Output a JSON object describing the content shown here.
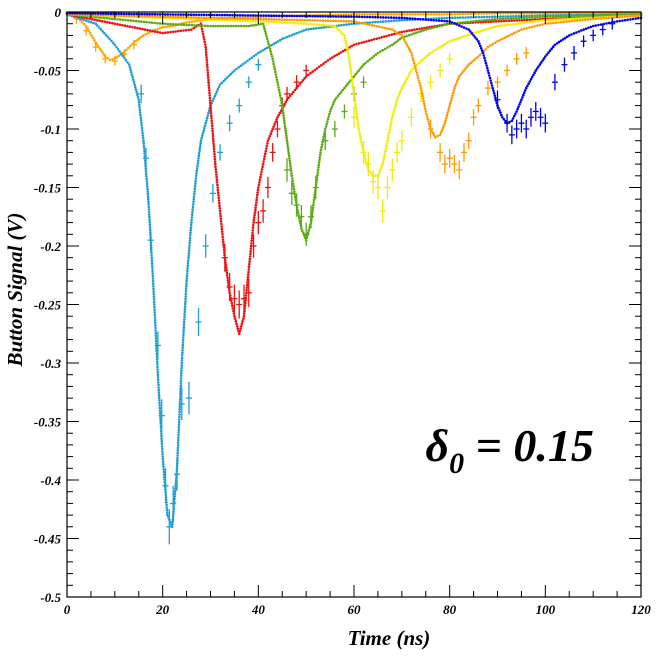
{
  "chart_data": {
    "type": "scatter",
    "title": "",
    "xlabel": "Time (ns)",
    "ylabel": "Button Signal (V)",
    "xlim": [
      0,
      120
    ],
    "ylim": [
      -0.5,
      0
    ],
    "x_ticks": [
      "0",
      "20",
      "40",
      "60",
      "80",
      "100",
      "120"
    ],
    "y_ticks": [
      "0",
      "-0.05",
      "-0.1",
      "-0.15",
      "-0.2",
      "-0.25",
      "-0.3",
      "-0.35",
      "-0.4",
      "-0.45",
      "-0.5"
    ],
    "grid": false,
    "annotation": {
      "symbol": "δ",
      "subscript": "0",
      "text": " = 0.15",
      "x": 99,
      "y": -0.365
    },
    "colors": {
      "orange": "#ffa500",
      "cyan": "#1f9fd0",
      "red": "#ee1111",
      "green": "#5aaa10",
      "yellow": "#eeee00",
      "amber": "#ff9900",
      "blue": "#0000ee"
    },
    "series": [
      {
        "color": "#ffa500",
        "marker": "dot",
        "x": [
          0,
          2,
          4,
          6,
          8,
          9,
          10,
          12,
          14,
          16,
          18,
          20,
          22,
          25,
          30,
          35,
          40,
          50,
          60,
          70,
          80,
          90,
          100,
          110,
          120
        ],
        "y": [
          -0.002,
          -0.004,
          -0.012,
          -0.026,
          -0.038,
          -0.041,
          -0.04,
          -0.034,
          -0.026,
          -0.02,
          -0.016,
          -0.013,
          -0.012,
          -0.009,
          -0.006,
          -0.005,
          -0.004,
          -0.003,
          -0.002,
          -0.002,
          -0.002,
          -0.001,
          -0.001,
          -0.001,
          -0.001
        ],
        "points_x": [
          2,
          4,
          6,
          8,
          10,
          12,
          14
        ],
        "points_y": [
          -0.006,
          -0.016,
          -0.03,
          -0.04,
          -0.042,
          -0.036,
          -0.028
        ],
        "points_err": [
          0.004,
          0.004,
          0.004,
          0.004,
          0.004,
          0.004,
          0.004
        ]
      },
      {
        "color": "#1f9fd0",
        "marker": "dot",
        "x": [
          0,
          6,
          10,
          13,
          15,
          16,
          17,
          18,
          19,
          20,
          21,
          22,
          23,
          24,
          25,
          26,
          27,
          28,
          30,
          32,
          35,
          40,
          45,
          50,
          60,
          70,
          80,
          90,
          100,
          120
        ],
        "y": [
          -0.002,
          -0.01,
          -0.028,
          -0.045,
          -0.075,
          -0.11,
          -0.16,
          -0.23,
          -0.31,
          -0.38,
          -0.43,
          -0.44,
          -0.39,
          -0.3,
          -0.23,
          -0.18,
          -0.14,
          -0.11,
          -0.08,
          -0.062,
          -0.05,
          -0.035,
          -0.023,
          -0.015,
          -0.01,
          -0.007,
          -0.005,
          -0.004,
          -0.003,
          -0.002
        ],
        "points_x": [
          15.5,
          16.5,
          17.5,
          19,
          19.8,
          20.6,
          21.4,
          22.2,
          23,
          24,
          25.5,
          27.5,
          29,
          30.5,
          32,
          34,
          36,
          38,
          40
        ],
        "points_y": [
          -0.07,
          -0.125,
          -0.195,
          -0.285,
          -0.345,
          -0.405,
          -0.44,
          -0.42,
          -0.395,
          -0.335,
          -0.33,
          -0.265,
          -0.2,
          -0.155,
          -0.12,
          -0.095,
          -0.08,
          -0.06,
          -0.045
        ],
        "points_err": [
          0.008,
          0.009,
          0.01,
          0.012,
          0.014,
          0.015,
          0.015,
          0.015,
          0.014,
          0.014,
          0.014,
          0.012,
          0.01,
          0.008,
          0.007,
          0.007,
          0.006,
          0.005,
          0.005
        ]
      },
      {
        "color": "#ee1111",
        "marker": "dot",
        "x": [
          0,
          10,
          20,
          26,
          28,
          29,
          30,
          31,
          32,
          33,
          34,
          35,
          36,
          37,
          38,
          39,
          40,
          42,
          44,
          46,
          48,
          50,
          55,
          60,
          70,
          80,
          100,
          120
        ],
        "y": [
          -0.002,
          -0.01,
          -0.018,
          -0.015,
          -0.01,
          -0.03,
          -0.08,
          -0.13,
          -0.17,
          -0.21,
          -0.24,
          -0.26,
          -0.275,
          -0.26,
          -0.22,
          -0.18,
          -0.15,
          -0.11,
          -0.09,
          -0.075,
          -0.065,
          -0.055,
          -0.04,
          -0.028,
          -0.017,
          -0.01,
          -0.006,
          -0.003
        ],
        "points_x": [
          33,
          34,
          35,
          36,
          37,
          38,
          39,
          40,
          41,
          42,
          43,
          44,
          45,
          46,
          48,
          50
        ],
        "points_y": [
          -0.21,
          -0.235,
          -0.245,
          -0.25,
          -0.245,
          -0.24,
          -0.2,
          -0.18,
          -0.17,
          -0.15,
          -0.12,
          -0.1,
          -0.08,
          -0.07,
          -0.06,
          -0.05
        ],
        "points_err": [
          0.012,
          0.012,
          0.012,
          0.012,
          0.012,
          0.012,
          0.01,
          0.01,
          0.01,
          0.009,
          0.008,
          0.007,
          0.007,
          0.006,
          0.006,
          0.005
        ]
      },
      {
        "color": "#5aaa10",
        "marker": "dot",
        "x": [
          0,
          10,
          20,
          30,
          38,
          41,
          43,
          44,
          45,
          46,
          47,
          48,
          49,
          50,
          51,
          52,
          53,
          54,
          55,
          56,
          58,
          60,
          62,
          65,
          68,
          70,
          75,
          80,
          90,
          100,
          120
        ],
        "y": [
          -0.002,
          -0.006,
          -0.01,
          -0.012,
          -0.012,
          -0.01,
          -0.04,
          -0.06,
          -0.08,
          -0.11,
          -0.14,
          -0.165,
          -0.185,
          -0.195,
          -0.18,
          -0.15,
          -0.12,
          -0.1,
          -0.085,
          -0.075,
          -0.065,
          -0.055,
          -0.045,
          -0.035,
          -0.028,
          -0.022,
          -0.015,
          -0.01,
          -0.006,
          -0.004,
          -0.002
        ],
        "points_x": [
          46,
          47,
          48,
          49,
          50,
          51,
          52,
          54,
          56,
          58,
          60,
          62
        ],
        "points_y": [
          -0.135,
          -0.155,
          -0.165,
          -0.175,
          -0.19,
          -0.175,
          -0.15,
          -0.11,
          -0.1,
          -0.085,
          -0.07,
          -0.06
        ],
        "points_err": [
          0.01,
          0.01,
          0.01,
          0.01,
          0.01,
          0.01,
          0.01,
          0.008,
          0.007,
          0.006,
          0.006,
          0.005
        ]
      },
      {
        "color": "#eeee00",
        "marker": "dot",
        "x": [
          0,
          20,
          40,
          50,
          56,
          58,
          59,
          60,
          61,
          62,
          63,
          64,
          65,
          66,
          67,
          68,
          69,
          70,
          72,
          74,
          76,
          78,
          80,
          85,
          90,
          100,
          120
        ],
        "y": [
          -0.002,
          -0.005,
          -0.008,
          -0.01,
          -0.012,
          -0.02,
          -0.04,
          -0.07,
          -0.1,
          -0.12,
          -0.135,
          -0.14,
          -0.14,
          -0.13,
          -0.11,
          -0.09,
          -0.075,
          -0.065,
          -0.05,
          -0.042,
          -0.035,
          -0.03,
          -0.025,
          -0.018,
          -0.012,
          -0.007,
          -0.003
        ],
        "points_x": [
          60,
          62,
          63,
          64,
          65,
          66,
          67,
          68,
          69,
          70,
          72,
          74,
          76,
          78,
          80
        ],
        "points_y": [
          -0.09,
          -0.12,
          -0.13,
          -0.145,
          -0.15,
          -0.17,
          -0.15,
          -0.135,
          -0.12,
          -0.11,
          -0.09,
          -0.07,
          -0.06,
          -0.05,
          -0.04
        ],
        "points_err": [
          0.009,
          0.01,
          0.01,
          0.01,
          0.01,
          0.01,
          0.01,
          0.01,
          0.009,
          0.009,
          0.008,
          0.007,
          0.006,
          0.006,
          0.005
        ]
      },
      {
        "color": "#ff9900",
        "marker": "dot",
        "x": [
          0,
          20,
          40,
          60,
          68,
          70,
          72,
          73,
          74,
          75,
          76,
          77,
          78,
          79,
          80,
          81,
          82,
          84,
          86,
          88,
          90,
          95,
          100,
          110,
          120
        ],
        "y": [
          -0.002,
          -0.004,
          -0.006,
          -0.008,
          -0.015,
          -0.02,
          -0.035,
          -0.05,
          -0.065,
          -0.085,
          -0.1,
          -0.107,
          -0.105,
          -0.095,
          -0.08,
          -0.065,
          -0.055,
          -0.045,
          -0.038,
          -0.03,
          -0.025,
          -0.015,
          -0.01,
          -0.006,
          -0.003
        ],
        "points_x": [
          76,
          78,
          79,
          80,
          81,
          82,
          83,
          84,
          85,
          86,
          88,
          90,
          92,
          94,
          96
        ],
        "points_y": [
          -0.1,
          -0.12,
          -0.13,
          -0.125,
          -0.13,
          -0.135,
          -0.12,
          -0.11,
          -0.09,
          -0.08,
          -0.065,
          -0.06,
          -0.05,
          -0.04,
          -0.035
        ],
        "points_err": [
          0.008,
          0.008,
          0.008,
          0.008,
          0.008,
          0.008,
          0.008,
          0.007,
          0.007,
          0.006,
          0.006,
          0.005,
          0.005,
          0.005,
          0.005
        ]
      },
      {
        "color": "#0000ee",
        "marker": "dot",
        "x": [
          0,
          20,
          40,
          60,
          70,
          80,
          84,
          86,
          87,
          88,
          89,
          90,
          91,
          92,
          93,
          94,
          95,
          96,
          98,
          100,
          102,
          105,
          108,
          110,
          115,
          120
        ],
        "y": [
          -0.001,
          -0.002,
          -0.003,
          -0.004,
          -0.005,
          -0.008,
          -0.015,
          -0.025,
          -0.035,
          -0.05,
          -0.065,
          -0.08,
          -0.09,
          -0.095,
          -0.093,
          -0.085,
          -0.075,
          -0.065,
          -0.05,
          -0.038,
          -0.028,
          -0.02,
          -0.015,
          -0.012,
          -0.008,
          -0.005
        ],
        "points_x": [
          90,
          92,
          93,
          94,
          95,
          96,
          97,
          98,
          99,
          100,
          102,
          104,
          106,
          108,
          110,
          112,
          114
        ],
        "points_y": [
          -0.075,
          -0.095,
          -0.105,
          -0.1,
          -0.095,
          -0.1,
          -0.09,
          -0.085,
          -0.09,
          -0.095,
          -0.06,
          -0.045,
          -0.035,
          -0.025,
          -0.02,
          -0.015,
          -0.01
        ],
        "points_err": [
          0.008,
          0.008,
          0.008,
          0.008,
          0.008,
          0.008,
          0.008,
          0.008,
          0.008,
          0.008,
          0.007,
          0.006,
          0.006,
          0.005,
          0.005,
          0.005,
          0.005
        ]
      }
    ]
  }
}
